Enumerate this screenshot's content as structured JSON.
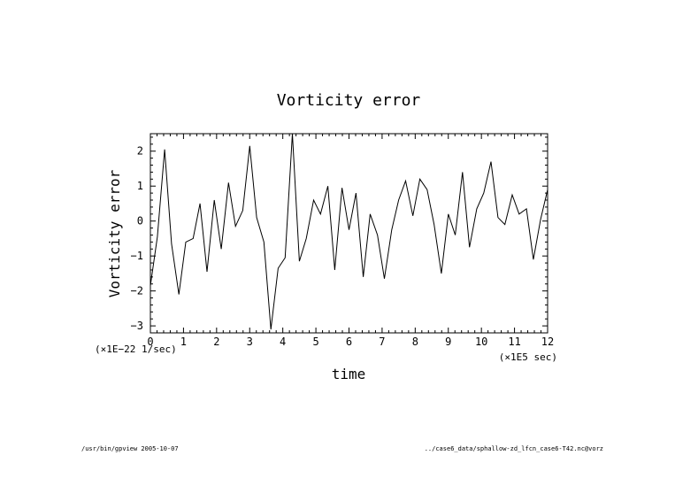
{
  "chart_data": {
    "type": "line",
    "title": "Vorticity error",
    "xlabel": "time",
    "ylabel": "Vorticity error",
    "x_scale_label": "(×1E5 sec)",
    "y_scale_label": "(×1E−22 1/sec)",
    "xlim": [
      0,
      12
    ],
    "ylim": [
      -3.2,
      2.5
    ],
    "x_ticks": [
      0,
      1,
      2,
      3,
      4,
      5,
      6,
      7,
      8,
      9,
      10,
      11,
      12
    ],
    "y_ticks": [
      -3,
      -2,
      -1,
      0,
      1,
      2
    ],
    "grid": false,
    "series": [
      {
        "x": [
          0.0,
          0.21,
          0.43,
          0.64,
          0.86,
          1.07,
          1.29,
          1.5,
          1.71,
          1.93,
          2.14,
          2.36,
          2.57,
          2.79,
          3.0,
          3.21,
          3.43,
          3.64,
          3.86,
          4.07,
          4.29,
          4.5,
          4.71,
          4.93,
          5.14,
          5.36,
          5.57,
          5.79,
          6.0,
          6.21,
          6.43,
          6.64,
          6.86,
          7.07,
          7.29,
          7.5,
          7.71,
          7.93,
          8.14,
          8.36,
          8.57,
          8.79,
          9.0,
          9.21,
          9.43,
          9.64,
          9.86,
          10.07,
          10.29,
          10.5,
          10.71,
          10.93,
          11.14,
          11.36,
          11.57,
          11.79,
          12.0
        ],
        "y": [
          -1.85,
          -0.45,
          2.05,
          -0.65,
          -2.1,
          -0.6,
          -0.5,
          0.5,
          -1.45,
          0.6,
          -0.8,
          1.1,
          -0.15,
          0.3,
          2.15,
          0.1,
          -0.6,
          -3.1,
          -1.35,
          -1.05,
          2.5,
          -1.15,
          -0.5,
          0.6,
          0.2,
          1.0,
          -1.4,
          0.95,
          -0.25,
          0.8,
          -1.6,
          0.2,
          -0.4,
          -1.65,
          -0.25,
          0.6,
          1.15,
          0.15,
          1.2,
          0.9,
          -0.1,
          -1.5,
          0.2,
          -0.4,
          1.4,
          -0.75,
          0.35,
          0.8,
          1.7,
          0.1,
          -0.1,
          0.75,
          0.2,
          0.35,
          -1.1,
          0.05,
          0.9
        ]
      }
    ]
  },
  "footer": {
    "left": "/usr/bin/gpview  2005-10-07",
    "right": "../case6_data/sphallow-zd_lfcn_case6-T42.nc@vorz"
  },
  "colors": {
    "line": "#000000",
    "background": "#ffffff"
  }
}
